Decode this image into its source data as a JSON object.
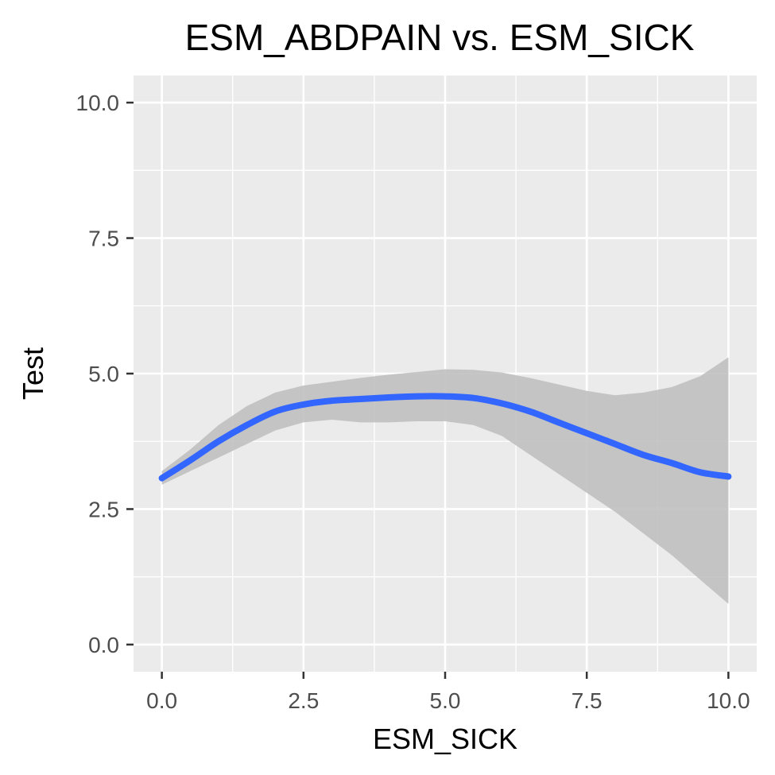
{
  "chart_data": {
    "type": "line",
    "title": "ESM_ABDPAIN vs. ESM_SICK",
    "xlabel": "ESM_SICK",
    "ylabel": "Test",
    "xlim": [
      -0.5,
      10.5
    ],
    "ylim": [
      -0.5,
      10.5
    ],
    "x_ticks": [
      0,
      2.5,
      5,
      7.5,
      10
    ],
    "y_ticks": [
      0,
      2.5,
      5,
      7.5,
      10
    ],
    "x_tick_labels": [
      "0.0",
      "2.5",
      "5.0",
      "7.5",
      "10.0"
    ],
    "y_tick_labels": [
      "0.0",
      "2.5",
      "5.0",
      "7.5",
      "10.0"
    ],
    "grid": true,
    "legend": "none",
    "series": [
      {
        "color": "#3366FF",
        "x": [
          0,
          0.5,
          1,
          1.5,
          2,
          2.5,
          3,
          3.5,
          4,
          4.5,
          5,
          5.5,
          6,
          6.5,
          7,
          7.5,
          8,
          8.5,
          9,
          9.5,
          10
        ],
        "y": [
          3.07,
          3.4,
          3.75,
          4.05,
          4.3,
          4.43,
          4.5,
          4.53,
          4.56,
          4.58,
          4.58,
          4.55,
          4.45,
          4.3,
          4.1,
          3.9,
          3.7,
          3.5,
          3.35,
          3.18,
          3.1
        ],
        "ci_lower": [
          2.95,
          3.2,
          3.45,
          3.7,
          3.95,
          4.1,
          4.15,
          4.1,
          4.1,
          4.12,
          4.12,
          4.05,
          3.85,
          3.5,
          3.15,
          2.8,
          2.45,
          2.05,
          1.65,
          1.2,
          0.75
        ],
        "ci_upper": [
          3.2,
          3.6,
          4.05,
          4.4,
          4.65,
          4.78,
          4.85,
          4.92,
          4.98,
          5.03,
          5.08,
          5.07,
          5.02,
          4.92,
          4.8,
          4.68,
          4.6,
          4.65,
          4.75,
          4.95,
          5.3
        ]
      }
    ],
    "colors": {
      "panel_bg": "#EBEBEB",
      "grid": "#FFFFFF",
      "ribbon": "#C0C0C0",
      "line": "#3366FF"
    }
  }
}
